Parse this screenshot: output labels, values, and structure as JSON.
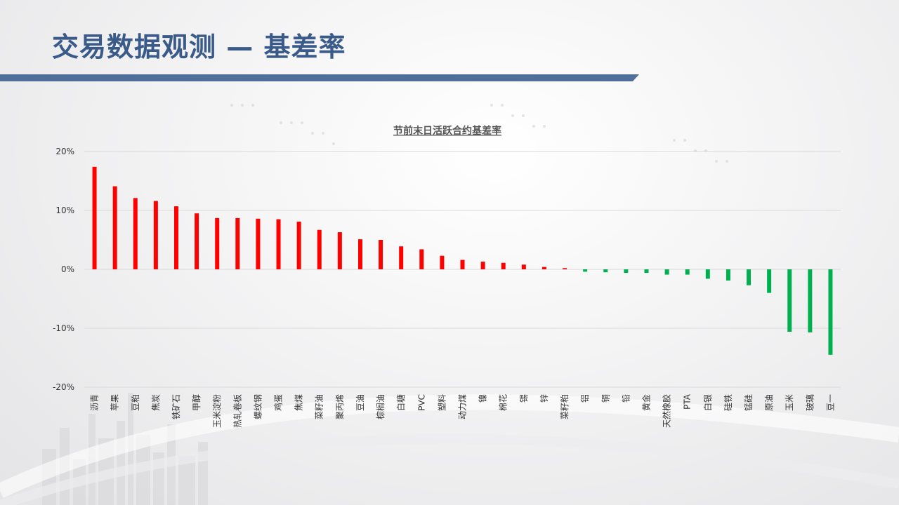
{
  "slide": {
    "title": "交易数据观测 — 基差率"
  },
  "colors": {
    "title": "#3a5b8a",
    "title_bar": "#4f6f9a",
    "positive": "#ff0000",
    "negative": "#00b050",
    "axis_text": "#333333",
    "chart_title": "#555555",
    "grid": "#d9d9d9"
  },
  "chart_data": {
    "type": "bar",
    "title": "节前末日活跃合约基差率",
    "xlabel": "",
    "ylabel": "",
    "ylim": [
      -0.2,
      0.2
    ],
    "yticks": [
      0.2,
      0.1,
      0,
      -0.1,
      -0.2
    ],
    "ytick_labels": [
      "20%",
      "10%",
      "0%",
      "-10%",
      "-20%"
    ],
    "grid": true,
    "categories": [
      "沥青",
      "苹果",
      "豆粕",
      "焦炭",
      "铁矿石",
      "甲醇",
      "玉米淀粉",
      "热轧卷板",
      "螺纹钢",
      "鸡蛋",
      "焦煤",
      "菜籽油",
      "聚丙烯",
      "豆油",
      "棕榈油",
      "白糖",
      "PVC",
      "塑料",
      "动力煤",
      "镍",
      "棉花",
      "锡",
      "锌",
      "菜籽粕",
      "铝",
      "铜",
      "铅",
      "黄金",
      "天然橡胶",
      "PTA",
      "白银",
      "硅铁",
      "锰硅",
      "原油",
      "玉米",
      "玻璃",
      "豆一"
    ],
    "values": [
      0.174,
      0.141,
      0.121,
      0.116,
      0.107,
      0.095,
      0.087,
      0.087,
      0.086,
      0.085,
      0.081,
      0.067,
      0.063,
      0.051,
      0.05,
      0.039,
      0.034,
      0.023,
      0.016,
      0.013,
      0.011,
      0.008,
      0.004,
      0.002,
      -0.004,
      -0.005,
      -0.006,
      -0.006,
      -0.009,
      -0.009,
      -0.016,
      -0.019,
      -0.027,
      -0.04,
      -0.106,
      -0.107,
      -0.145
    ]
  }
}
